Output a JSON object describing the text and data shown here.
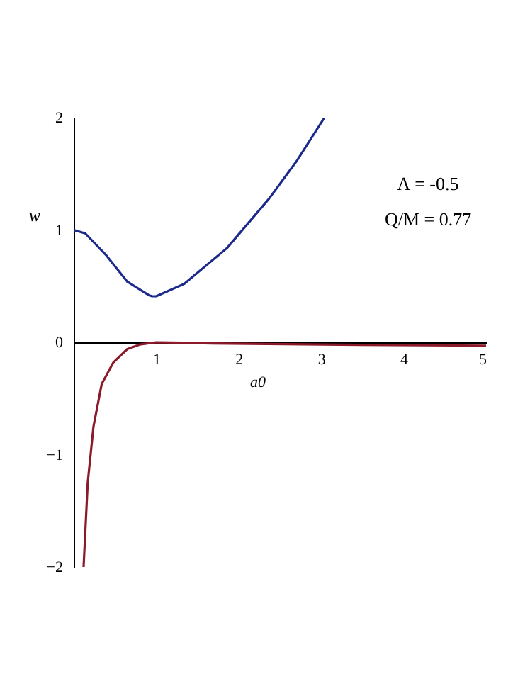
{
  "chart_data": {
    "type": "line",
    "xlabel": "a0",
    "ylabel": "w",
    "annotations": [
      "Λ = -0.5",
      "Q/M = 0.77"
    ],
    "xlim": [
      0,
      5
    ],
    "ylim": [
      -2,
      2
    ],
    "xticks": [
      1,
      2,
      3,
      4,
      5
    ],
    "yticks": [
      -2,
      -1,
      0,
      1,
      2
    ],
    "grid": false,
    "legend": false,
    "marker": "none",
    "line_style": "solid",
    "series": [
      {
        "color": "#1c2a8c",
        "x": [
          0,
          0.14,
          0.4,
          0.65,
          0.91,
          0.95,
          1.0,
          1.34,
          1.86,
          2.37,
          2.71,
          3.04
        ],
        "values": [
          1.0,
          0.97,
          0.77,
          0.54,
          0.42,
          0.41,
          0.41,
          0.52,
          0.84,
          1.28,
          1.62,
          2.0
        ]
      },
      {
        "color": "#8b1a2a",
        "x": [
          0.12,
          0.17,
          0.24,
          0.34,
          0.48,
          0.65,
          0.8,
          1.0,
          1.68,
          3,
          5
        ],
        "values": [
          -2,
          -1.25,
          -0.75,
          -0.37,
          -0.18,
          -0.06,
          -0.02,
          0,
          -0.01,
          -0.02,
          -0.03
        ]
      }
    ]
  }
}
